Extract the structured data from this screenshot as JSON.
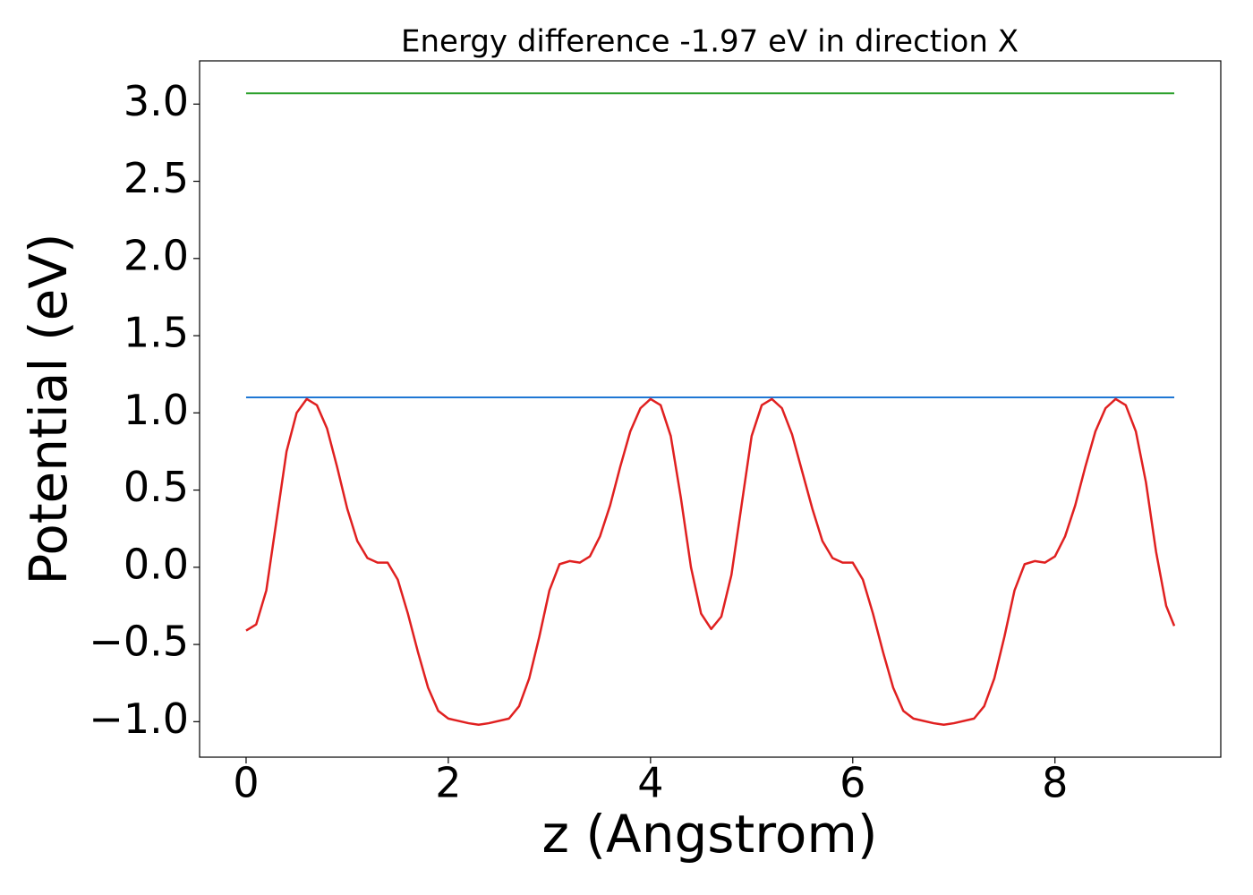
{
  "chart_data": {
    "type": "line",
    "title": "Energy difference -1.97 eV in direction X",
    "xlabel": "z (Angstrom)",
    "ylabel": "Potential (eV)",
    "xlim": [
      -0.46,
      9.64
    ],
    "ylim": [
      -1.23,
      3.28
    ],
    "xticks": [
      0,
      2,
      4,
      6,
      8
    ],
    "yticks": [
      {
        "value": -1.0,
        "label": "−1.0"
      },
      {
        "value": -0.5,
        "label": "−0.5"
      },
      {
        "value": 0.0,
        "label": "0.0"
      },
      {
        "value": 0.5,
        "label": "0.5"
      },
      {
        "value": 1.0,
        "label": "1.0"
      },
      {
        "value": 1.5,
        "label": "1.5"
      },
      {
        "value": 2.0,
        "label": "2.0"
      },
      {
        "value": 2.5,
        "label": "2.5"
      },
      {
        "value": 3.0,
        "label": "3.0"
      }
    ],
    "grid": false,
    "series": [
      {
        "color": "#2ca02c",
        "x": [
          0,
          9.18
        ],
        "values": [
          3.07,
          3.07
        ]
      },
      {
        "color": "#1f77d4",
        "x": [
          0,
          9.18
        ],
        "values": [
          1.1,
          1.1
        ]
      },
      {
        "color": "#e02020",
        "x": [
          0,
          0.1,
          0.2,
          0.3,
          0.4,
          0.5,
          0.6,
          0.7,
          0.8,
          0.9,
          1.0,
          1.1,
          1.2,
          1.3,
          1.4,
          1.5,
          1.6,
          1.7,
          1.8,
          1.9,
          2.0,
          2.2,
          2.3,
          2.4,
          2.6,
          2.7,
          2.8,
          2.9,
          3.0,
          3.1,
          3.2,
          3.3,
          3.4,
          3.5,
          3.6,
          3.7,
          3.8,
          3.9,
          4.0,
          4.1,
          4.2,
          4.3,
          4.4,
          4.5,
          4.6,
          4.7,
          4.8,
          4.9,
          5.0,
          5.1,
          5.2,
          5.3,
          5.4,
          5.5,
          5.6,
          5.7,
          5.8,
          5.9,
          6.0,
          6.1,
          6.2,
          6.3,
          6.4,
          6.5,
          6.6,
          6.8,
          6.9,
          7.0,
          7.2,
          7.3,
          7.4,
          7.5,
          7.6,
          7.7,
          7.8,
          7.9,
          8.0,
          8.1,
          8.2,
          8.3,
          8.4,
          8.5,
          8.6,
          8.7,
          8.8,
          8.9,
          9.0,
          9.1,
          9.18
        ],
        "values": [
          -0.41,
          -0.37,
          -0.15,
          0.3,
          0.75,
          1.0,
          1.09,
          1.05,
          0.9,
          0.65,
          0.38,
          0.17,
          0.06,
          0.03,
          0.03,
          -0.08,
          -0.3,
          -0.55,
          -0.78,
          -0.93,
          -0.98,
          -1.01,
          -1.02,
          -1.01,
          -0.98,
          -0.9,
          -0.72,
          -0.45,
          -0.15,
          0.02,
          0.04,
          0.03,
          0.07,
          0.2,
          0.4,
          0.65,
          0.88,
          1.03,
          1.09,
          1.05,
          0.85,
          0.45,
          0.0,
          -0.3,
          -0.4,
          -0.32,
          -0.05,
          0.4,
          0.85,
          1.05,
          1.09,
          1.03,
          0.86,
          0.62,
          0.38,
          0.17,
          0.06,
          0.03,
          0.03,
          -0.08,
          -0.3,
          -0.55,
          -0.78,
          -0.93,
          -0.98,
          -1.01,
          -1.02,
          -1.01,
          -0.98,
          -0.9,
          -0.72,
          -0.45,
          -0.15,
          0.02,
          0.04,
          0.03,
          0.07,
          0.2,
          0.4,
          0.65,
          0.88,
          1.03,
          1.09,
          1.05,
          0.88,
          0.55,
          0.1,
          -0.25,
          -0.38
        ]
      }
    ]
  }
}
